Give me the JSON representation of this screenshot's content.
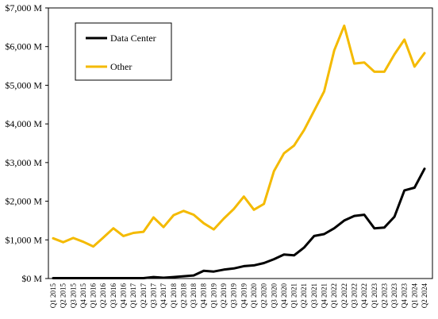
{
  "chart_data": {
    "type": "line",
    "categories": [
      "Q1 2015",
      "Q2 2015",
      "Q3 2015",
      "Q4 2015",
      "Q1 2016",
      "Q2 2016",
      "Q3 2016",
      "Q4 2016",
      "Q1 2017",
      "Q2 2017",
      "Q3 2017",
      "Q4 2017",
      "Q1 2018",
      "Q2 2018",
      "Q3 2018",
      "Q4 2018",
      "Q1 2019",
      "Q2 2019",
      "Q3 2019",
      "Q4 2019",
      "Q1 2020",
      "Q2 2020",
      "Q3 2020",
      "Q4 2020",
      "Q1 2021",
      "Q2 2021",
      "Q3 2021",
      "Q4 2021",
      "Q1 2022",
      "Q2 2022",
      "Q3 2022",
      "Q4 2022",
      "Q1 2023",
      "Q2 2023",
      "Q3 2023",
      "Q4 2023",
      "Q1 2024",
      "Q2 2024"
    ],
    "series": [
      {
        "name": "Data Center",
        "color": "#000000",
        "values": [
          10,
          10,
          10,
          10,
          10,
          10,
          10,
          10,
          10,
          10,
          40,
          20,
          40,
          60,
          80,
          200,
          180,
          230,
          260,
          320,
          340,
          400,
          500,
          620,
          600,
          800,
          1100,
          1150,
          1300,
          1500,
          1620,
          1650,
          1300,
          1320,
          1600,
          2280,
          2350,
          2840
        ]
      },
      {
        "name": "Other",
        "color": "#F4BA00",
        "values": [
          1040,
          940,
          1050,
          950,
          830,
          1060,
          1300,
          1100,
          1180,
          1210,
          1580,
          1330,
          1640,
          1750,
          1650,
          1430,
          1270,
          1550,
          1800,
          2120,
          1780,
          1930,
          2780,
          3240,
          3440,
          3840,
          4340,
          4840,
          5900,
          6540,
          5560,
          5590,
          5350,
          5350,
          5800,
          6180,
          5480,
          5830
        ]
      }
    ],
    "title": "",
    "xlabel": "",
    "ylabel": "",
    "ylim": [
      0,
      7000
    ],
    "yticks": [
      0,
      1000,
      2000,
      3000,
      4000,
      5000,
      6000,
      7000
    ],
    "ytick_labels": [
      "$0 M",
      "$1,000 M",
      "$2,000 M",
      "$3,000 M",
      "$4,000 M",
      "$5,000 M",
      "$6,000 M",
      "$7,000 M"
    ],
    "grid": false,
    "legend_position": "top-left"
  }
}
